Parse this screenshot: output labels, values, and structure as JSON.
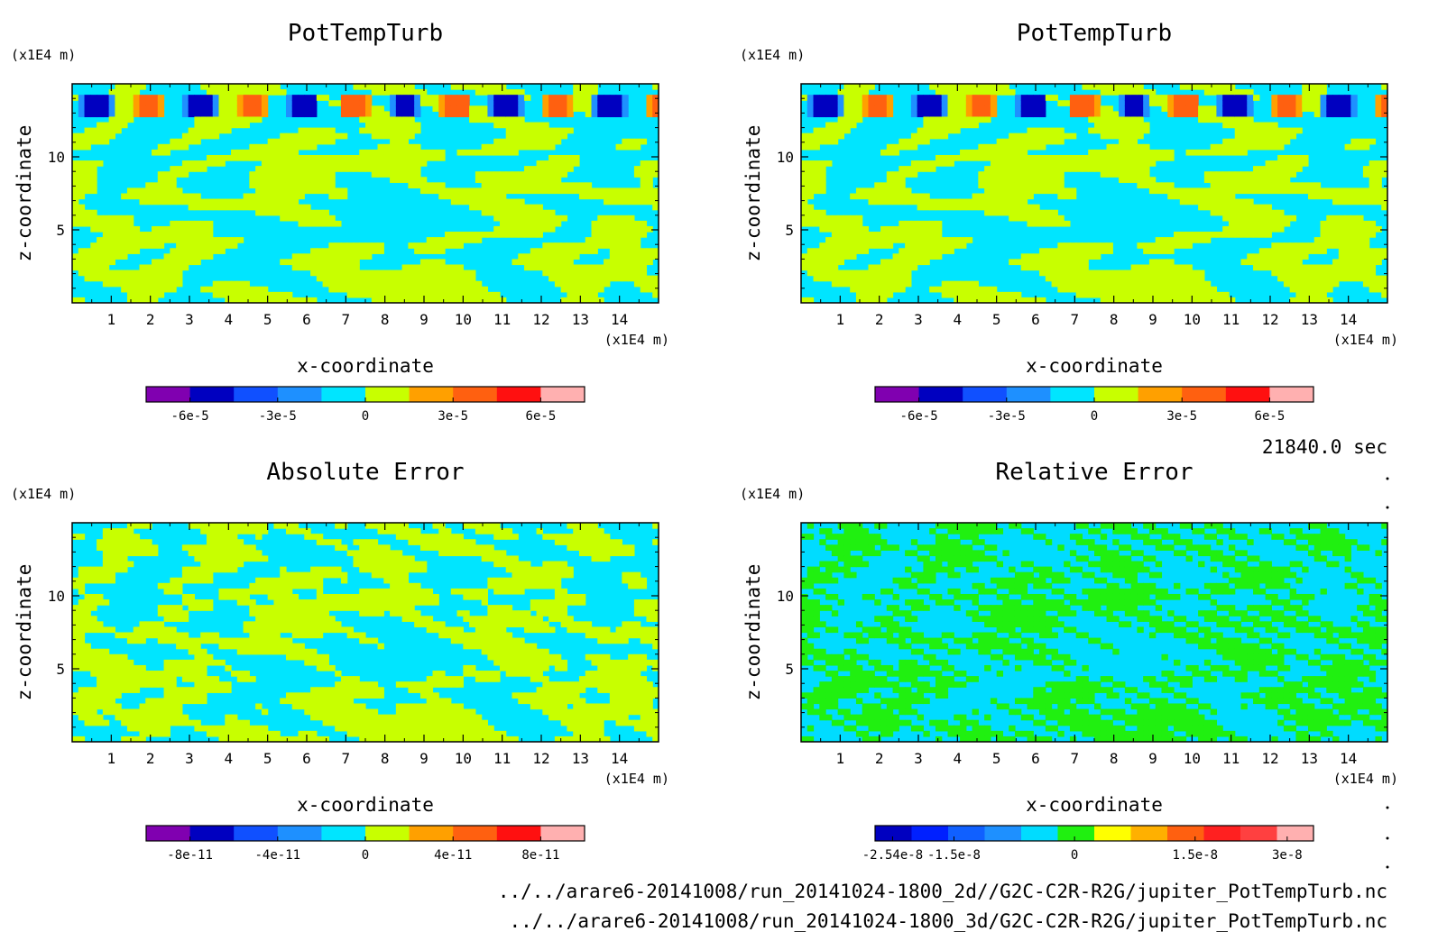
{
  "time_label": "21840.0 sec",
  "footer_lines": [
    "../../arare6-20141008/run_20141024-1800_2d//G2C-C2R-R2G/jupiter_PotTempTurb.nc",
    "../../arare6-20141008/run_20141024-1800_3d/G2C-C2R-R2G/jupiter_PotTempTurb.nc"
  ],
  "chart_data": [
    {
      "type": "heatmap",
      "title": "PotTempTurb",
      "xlabel": "x-coordinate",
      "ylabel": "z-coordinate",
      "x_unit": "(x1E4 m)",
      "y_unit": "(x1E4 m)",
      "x_ticks": [
        "1",
        "2",
        "3",
        "4",
        "5",
        "6",
        "7",
        "8",
        "9",
        "10",
        "11",
        "12",
        "13",
        "14"
      ],
      "y_ticks": [
        "5",
        "10"
      ],
      "xlim": [
        0,
        15
      ],
      "ylim": [
        0,
        15
      ],
      "pattern": "field",
      "colorbar": {
        "ticks": [
          "-6e-5",
          "-3e-5",
          "0",
          "3e-5",
          "6e-5"
        ],
        "colors": [
          "#8000b0",
          "#0000c0",
          "#1050ff",
          "#1e90ff",
          "#00e5ff",
          "#c8ff00",
          "#ffa000",
          "#ff6010",
          "#ff1010",
          "#ffb0b0"
        ]
      }
    },
    {
      "type": "heatmap",
      "title": "PotTempTurb",
      "xlabel": "x-coordinate",
      "ylabel": "z-coordinate",
      "x_unit": "(x1E4 m)",
      "y_unit": "(x1E4 m)",
      "x_ticks": [
        "1",
        "2",
        "3",
        "4",
        "5",
        "6",
        "7",
        "8",
        "9",
        "10",
        "11",
        "12",
        "13",
        "14"
      ],
      "y_ticks": [
        "5",
        "10"
      ],
      "xlim": [
        0,
        15
      ],
      "ylim": [
        0,
        15
      ],
      "pattern": "field",
      "colorbar": {
        "ticks": [
          "-6e-5",
          "-3e-5",
          "0",
          "3e-5",
          "6e-5"
        ],
        "colors": [
          "#8000b0",
          "#0000c0",
          "#1050ff",
          "#1e90ff",
          "#00e5ff",
          "#c8ff00",
          "#ffa000",
          "#ff6010",
          "#ff1010",
          "#ffb0b0"
        ]
      }
    },
    {
      "type": "heatmap",
      "title": "Absolute Error",
      "xlabel": "x-coordinate",
      "ylabel": "z-coordinate",
      "x_unit": "(x1E4 m)",
      "y_unit": "(x1E4 m)",
      "x_ticks": [
        "1",
        "2",
        "3",
        "4",
        "5",
        "6",
        "7",
        "8",
        "9",
        "10",
        "11",
        "12",
        "13",
        "14"
      ],
      "y_ticks": [
        "5",
        "10"
      ],
      "xlim": [
        0,
        15
      ],
      "ylim": [
        0,
        15
      ],
      "pattern": "abserr",
      "colorbar": {
        "ticks": [
          "-8e-11",
          "-4e-11",
          "0",
          "4e-11",
          "8e-11"
        ],
        "colors": [
          "#8000b0",
          "#0000c0",
          "#1050ff",
          "#1e90ff",
          "#00e5ff",
          "#c8ff00",
          "#ffa000",
          "#ff6010",
          "#ff1010",
          "#ffb0b0"
        ]
      }
    },
    {
      "type": "heatmap",
      "title": "Relative Error",
      "xlabel": "x-coordinate",
      "ylabel": "z-coordinate",
      "x_unit": "(x1E4 m)",
      "y_unit": "(x1E4 m)",
      "x_ticks": [
        "1",
        "2",
        "3",
        "4",
        "5",
        "6",
        "7",
        "8",
        "9",
        "10",
        "11",
        "12",
        "13",
        "14"
      ],
      "y_ticks": [
        "5",
        "10"
      ],
      "xlim": [
        0,
        15
      ],
      "ylim": [
        0,
        15
      ],
      "pattern": "relerr",
      "colorbar": {
        "ticks": [
          "-2.54e-8",
          "-1.5e-8",
          "0",
          "1.5e-8",
          "3e-8"
        ],
        "colors": [
          "#0000c0",
          "#0020ff",
          "#1060ff",
          "#1e90ff",
          "#00dcff",
          "#20f010",
          "#ffff00",
          "#ffb000",
          "#ff6010",
          "#ff2020",
          "#ff4040",
          "#ffb0b0"
        ]
      }
    }
  ]
}
